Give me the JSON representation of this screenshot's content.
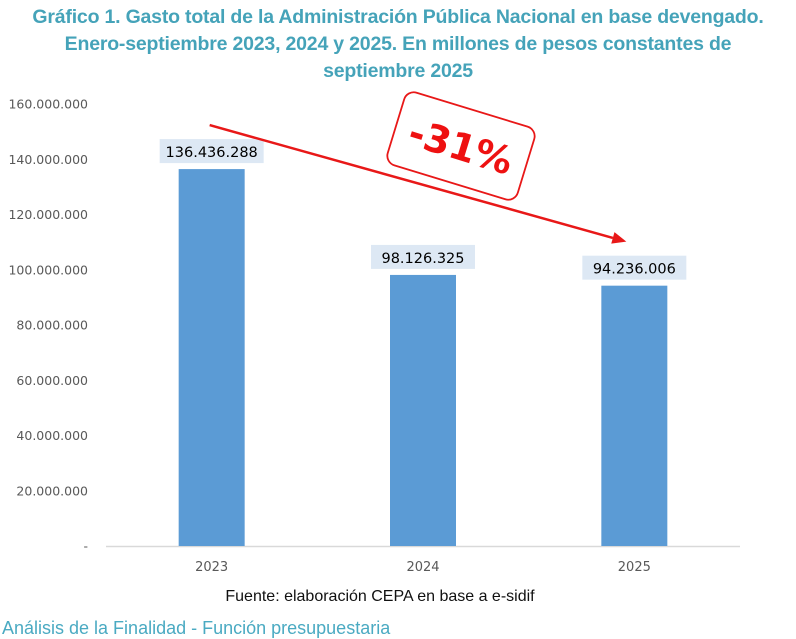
{
  "title_lines": [
    "Gráfico 1. Gasto total de la Administración Pública Nacional en base devengado.",
    "Enero-septiembre 2023, 2024 y 2025. En millones de pesos constantes de",
    "septiembre 2025"
  ],
  "source": "Fuente: elaboración CEPA en base a e-sidif",
  "cutoff_heading": "Análisis de la Finalidad - Función presupuestaria",
  "colors": {
    "title": "#45a3b9",
    "bar": "#5b9bd5",
    "label_bg": "#dde8f4",
    "annotation": "#e81818",
    "axis": "#d9d9d9"
  },
  "chart_data": {
    "type": "bar",
    "title": "Gráfico 1. Gasto total de la Administración Pública Nacional en base devengado. Enero-septiembre 2023, 2024 y 2025. En millones de pesos constantes de septiembre 2025",
    "categories": [
      "2023",
      "2024",
      "2025"
    ],
    "values": [
      136436288,
      98126325,
      94236006
    ],
    "value_labels": [
      "136.436.288",
      "98.126.325",
      "94.236.006"
    ],
    "xlabel": "",
    "ylabel": "",
    "ylim": [
      0,
      160000000
    ],
    "yticks": [
      0,
      20000000,
      40000000,
      60000000,
      80000000,
      100000000,
      120000000,
      140000000,
      160000000
    ],
    "ytick_labels": [
      "-",
      "20.000.000",
      "40.000.000",
      "60.000.000",
      "80.000.000",
      "100.000.000",
      "120.000.000",
      "140.000.000",
      "160.000.000"
    ],
    "grid": false,
    "legend": "none",
    "annotations": [
      {
        "type": "arrow",
        "from_category": "2023",
        "to_category": "2025",
        "label": "-31%"
      }
    ]
  }
}
